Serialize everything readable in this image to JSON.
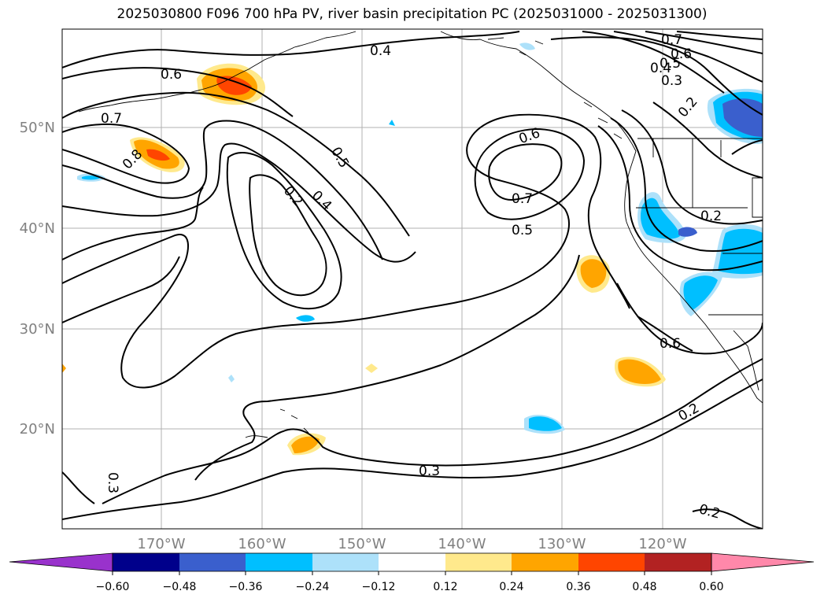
{
  "title": "2025030800 F096 700 hPa PV, river basin precipitation PC (2025031000 - 2025031300)",
  "lat_labels": [
    "50°N",
    "40°N",
    "30°N",
    "20°N"
  ],
  "lon_labels": [
    "170°W",
    "160°W",
    "150°W",
    "140°W",
    "130°W",
    "120°W"
  ],
  "contour_labels": [
    "0.4",
    "0.7",
    "0.6",
    "0.5",
    "0.4",
    "0.3",
    "0.6",
    "0.7",
    "0.8",
    "0.5",
    "0.2",
    "0.4",
    "0.6",
    "0.7",
    "0.5",
    "0.2",
    "0.2",
    "0.6",
    "0.2",
    "0.3",
    "0.3",
    "0.2"
  ],
  "colorbar": {
    "ticks": [
      "−0.60",
      "−0.48",
      "−0.36",
      "−0.24",
      "−0.12",
      "0.12",
      "0.24",
      "0.36",
      "0.48",
      "0.60"
    ],
    "colors": [
      "#9932CC",
      "#00008B",
      "#3A5FCD",
      "#00BFFF",
      "#ADE1FA",
      "#FFFFFF",
      "#FFE98C",
      "#FFA500",
      "#FF4500",
      "#B22222",
      "#FF88AA"
    ]
  },
  "colors": {
    "grid": "#b0b0b0",
    "axis_label": "#808080",
    "contour": "#000000"
  }
}
